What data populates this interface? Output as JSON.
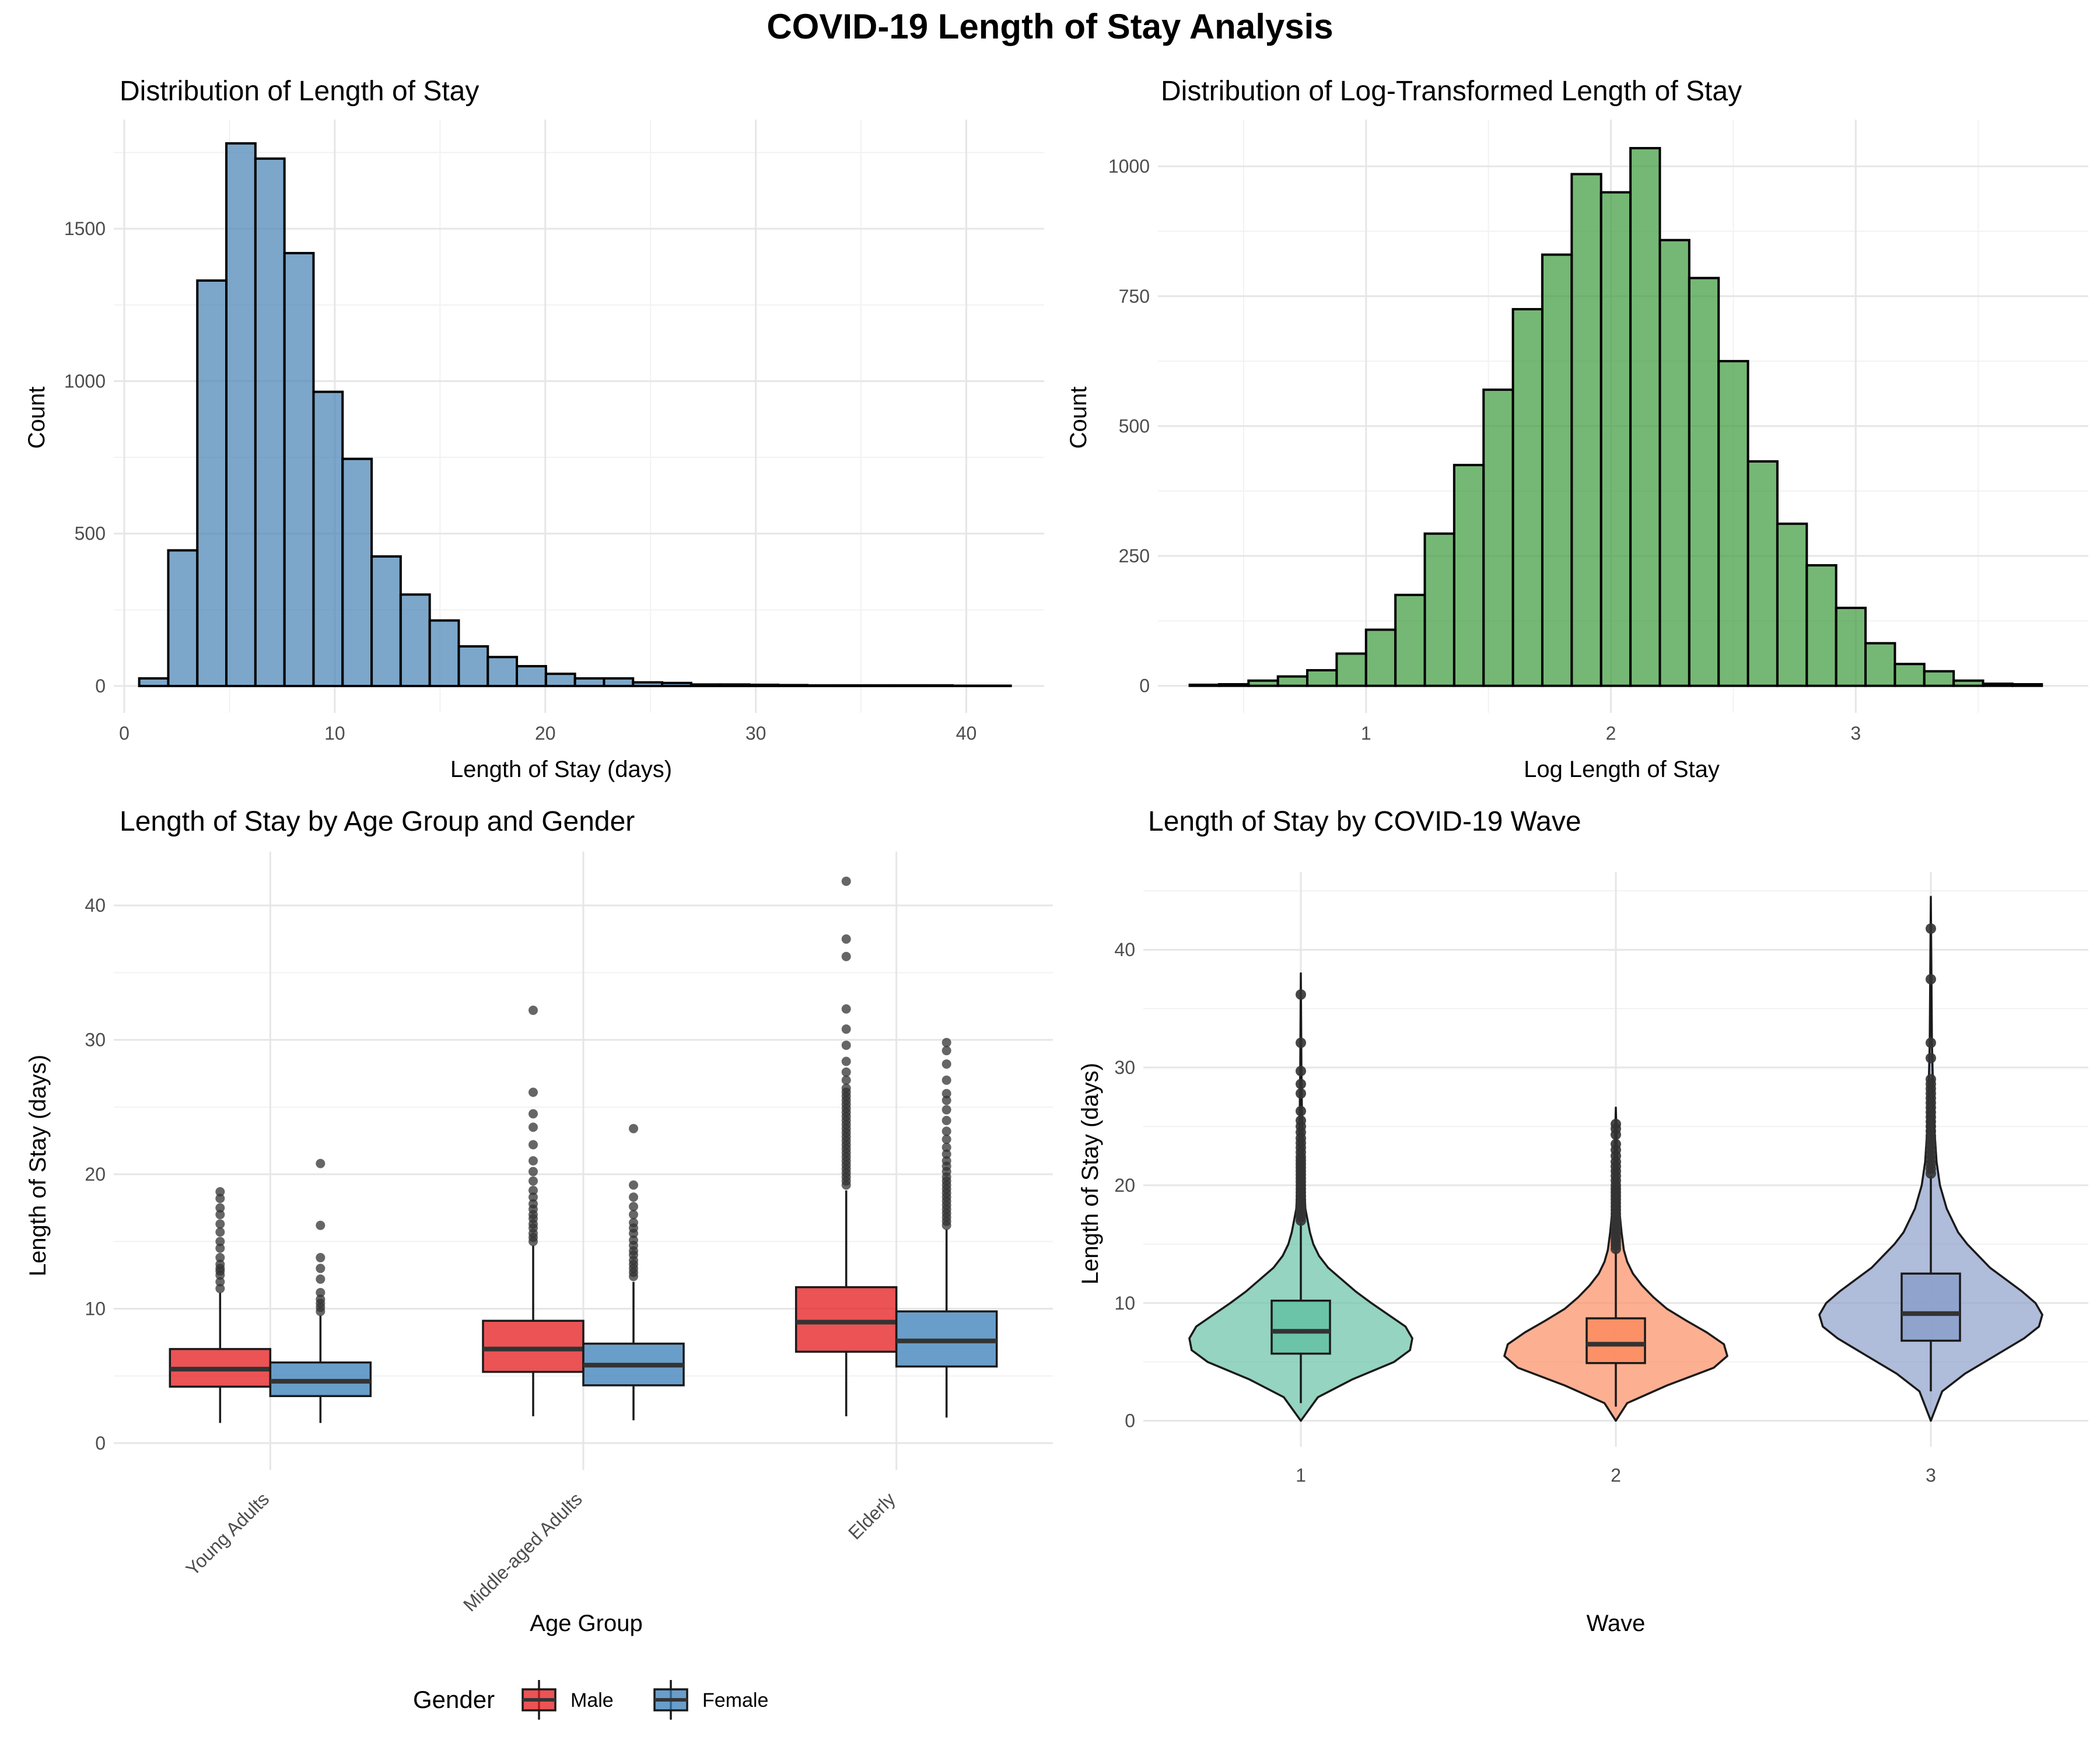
{
  "figure": {
    "title": "COVID-19 Length of Stay Analysis"
  },
  "chart_data": [
    {
      "id": "los-histogram",
      "type": "bar",
      "title": "Distribution of Length of Stay",
      "xlabel": "Length of Stay (days)",
      "ylabel": "Count",
      "xlim": [
        -0.5,
        43.7
      ],
      "ylim": [
        -88,
        1858
      ],
      "xticks": [
        0,
        10,
        20,
        30,
        40
      ],
      "yticks": [
        0,
        500,
        1000,
        1500
      ],
      "grid": true,
      "fill": "#4682B4",
      "bin_width": 1.38,
      "bin_centers": [
        1.4,
        2.78,
        4.16,
        5.54,
        6.92,
        8.3,
        9.68,
        11.06,
        12.44,
        13.82,
        15.2,
        16.58,
        17.96,
        19.34,
        20.72,
        22.1,
        23.48,
        24.86,
        26.24,
        27.62,
        29.0,
        30.38,
        31.76,
        33.14,
        34.52,
        35.9,
        37.28,
        38.66,
        40.04,
        41.42
      ],
      "values": [
        25,
        445,
        1330,
        1780,
        1730,
        1420,
        965,
        745,
        425,
        300,
        215,
        130,
        95,
        65,
        40,
        25,
        25,
        12,
        10,
        5,
        5,
        4,
        3,
        2,
        2,
        2,
        2,
        2,
        1,
        1
      ]
    },
    {
      "id": "log-los-histogram",
      "type": "bar",
      "title": "Distribution of Log-Transformed Length of Stay",
      "xlabel": "Log Length of Stay",
      "ylabel": "Count",
      "xlim": [
        0.15,
        3.95
      ],
      "ylim": [
        -52,
        1090
      ],
      "xticks": [
        1,
        2,
        3
      ],
      "yticks": [
        0,
        250,
        500,
        750,
        1000
      ],
      "grid": true,
      "fill": "#3A9A3A",
      "bin_width": 0.12,
      "bin_centers": [
        0.34,
        0.46,
        0.58,
        0.7,
        0.82,
        0.94,
        1.06,
        1.18,
        1.3,
        1.42,
        1.54,
        1.66,
        1.78,
        1.9,
        2.02,
        2.14,
        2.26,
        2.38,
        2.5,
        2.62,
        2.74,
        2.86,
        2.98,
        3.1,
        3.22,
        3.34,
        3.46,
        3.58,
        3.7
      ],
      "values": [
        2,
        3,
        10,
        18,
        30,
        62,
        108,
        175,
        293,
        425,
        570,
        725,
        830,
        985,
        950,
        1035,
        858,
        785,
        625,
        432,
        312,
        232,
        150,
        82,
        42,
        28,
        10,
        4,
        3
      ]
    },
    {
      "id": "age-gender-boxplot",
      "type": "box",
      "title": "Length of Stay by Age Group and Gender",
      "xlabel": "Age Group",
      "ylabel": "Length of Stay (days)",
      "ylim": [
        -2,
        44
      ],
      "yticks": [
        0,
        10,
        20,
        30,
        40
      ],
      "grid": true,
      "categories": [
        "Young Adults",
        "Middle-aged Adults",
        "Elderly"
      ],
      "legend": {
        "title": "Gender",
        "position": "bottom"
      },
      "series": [
        {
          "name": "Male",
          "color": "#E41A1C",
          "boxes": [
            {
              "min": 1.5,
              "q1": 4.2,
              "median": 5.5,
              "q3": 7.0,
              "max": 11.2,
              "outliers": [
                11.5,
                12.0,
                12.5,
                12.8,
                13.0,
                13.3,
                13.8,
                14.5,
                15.0,
                15.7,
                16.3,
                17.0,
                17.5,
                18.2,
                18.7
              ]
            },
            {
              "min": 2.0,
              "q1": 5.3,
              "median": 7.0,
              "q3": 9.1,
              "max": 14.7,
              "outliers": [
                15.0,
                15.3,
                15.6,
                16.0,
                16.3,
                16.7,
                17.0,
                17.4,
                17.8,
                18.3,
                18.8,
                19.5,
                20.2,
                21.0,
                22.2,
                23.5,
                24.5,
                26.1,
                32.2
              ]
            },
            {
              "min": 2.0,
              "q1": 6.8,
              "median": 9.0,
              "q3": 11.6,
              "max": 18.8,
              "outliers": [
                19.2,
                19.5,
                19.8,
                20.1,
                20.4,
                20.7,
                21.0,
                21.3,
                21.6,
                21.9,
                22.2,
                22.5,
                22.8,
                23.1,
                23.4,
                23.7,
                24.0,
                24.3,
                24.6,
                24.9,
                25.2,
                25.5,
                25.8,
                26.1,
                26.4,
                27.0,
                27.6,
                28.4,
                29.6,
                30.8,
                32.3,
                36.2,
                37.5,
                41.8
              ]
            }
          ]
        },
        {
          "name": "Female",
          "color": "#377EB8",
          "boxes": [
            {
              "min": 1.5,
              "q1": 3.5,
              "median": 4.6,
              "q3": 6.0,
              "max": 9.5,
              "outliers": [
                9.8,
                10.1,
                10.4,
                10.7,
                11.2,
                12.2,
                13.0,
                13.8,
                16.2,
                20.8
              ]
            },
            {
              "min": 1.7,
              "q1": 4.3,
              "median": 5.8,
              "q3": 7.4,
              "max": 12.0,
              "outliers": [
                12.4,
                12.7,
                13.0,
                13.3,
                13.6,
                14.0,
                14.3,
                14.7,
                15.1,
                15.6,
                16.0,
                16.4,
                17.0,
                17.6,
                18.3,
                19.2,
                23.4
              ]
            },
            {
              "min": 1.9,
              "q1": 5.7,
              "median": 7.6,
              "q3": 9.8,
              "max": 15.9,
              "outliers": [
                16.2,
                16.5,
                16.8,
                17.1,
                17.4,
                17.7,
                18.0,
                18.3,
                18.6,
                18.9,
                19.2,
                19.5,
                19.8,
                20.2,
                20.6,
                21.0,
                21.5,
                22.0,
                22.6,
                23.2,
                24.0,
                24.8,
                25.5,
                26.0,
                27.0,
                28.2,
                29.2,
                29.8
              ]
            }
          ]
        }
      ]
    },
    {
      "id": "wave-violin",
      "type": "violin",
      "title": "Length of Stay by COVID-19 Wave",
      "xlabel": "Wave",
      "ylabel": "Length of Stay (days)",
      "ylim": [
        -2.2,
        46.6
      ],
      "yticks": [
        0,
        10,
        20,
        30,
        40
      ],
      "grid": true,
      "categories": [
        "1",
        "2",
        "3"
      ],
      "series": [
        {
          "name": "1",
          "color": "#66C2A5",
          "density": [
            [
              0,
              0.0
            ],
            [
              2,
              0.15
            ],
            [
              3.5,
              0.45
            ],
            [
              5,
              0.82
            ],
            [
              6,
              0.96
            ],
            [
              7,
              0.98
            ],
            [
              8,
              0.92
            ],
            [
              9,
              0.77
            ],
            [
              10,
              0.62
            ],
            [
              11,
              0.48
            ],
            [
              12,
              0.36
            ],
            [
              13,
              0.24
            ],
            [
              14,
              0.16
            ],
            [
              15,
              0.11
            ],
            [
              16,
              0.08
            ],
            [
              17,
              0.06
            ],
            [
              18,
              0.04
            ],
            [
              20,
              0.03
            ],
            [
              22,
              0.02
            ],
            [
              26,
              0.01
            ],
            [
              30,
              0.005
            ],
            [
              38,
              0.0
            ]
          ],
          "box": {
            "min": 1.5,
            "q1": 5.7,
            "median": 7.6,
            "q3": 10.2,
            "max": 16.8
          },
          "outliers": [
            17.0,
            17.3,
            17.6,
            17.9,
            18.2,
            18.5,
            18.8,
            19.1,
            19.4,
            19.7,
            20.0,
            20.3,
            20.6,
            20.9,
            21.2,
            21.5,
            21.8,
            22.1,
            22.4,
            22.8,
            23.2,
            23.6,
            24.0,
            24.5,
            25.0,
            25.5,
            26.3,
            27.8,
            28.6,
            29.7,
            32.1,
            36.2
          ]
        },
        {
          "name": "2",
          "color": "#FC8D62",
          "density": [
            [
              0,
              0.0
            ],
            [
              1.5,
              0.1
            ],
            [
              3,
              0.45
            ],
            [
              4.5,
              0.86
            ],
            [
              5.5,
              0.98
            ],
            [
              6.5,
              0.95
            ],
            [
              7.5,
              0.8
            ],
            [
              8.5,
              0.62
            ],
            [
              9.5,
              0.45
            ],
            [
              10.5,
              0.33
            ],
            [
              11.5,
              0.23
            ],
            [
              12.5,
              0.15
            ],
            [
              13.5,
              0.1
            ],
            [
              14.5,
              0.07
            ],
            [
              16,
              0.05
            ],
            [
              18,
              0.03
            ],
            [
              20,
              0.02
            ],
            [
              23,
              0.01
            ],
            [
              26.6,
              0.0
            ]
          ],
          "box": {
            "min": 1.2,
            "q1": 4.9,
            "median": 6.5,
            "q3": 8.7,
            "max": 14.4
          },
          "outliers": [
            14.6,
            14.9,
            15.2,
            15.5,
            15.8,
            16.1,
            16.4,
            16.7,
            17.0,
            17.3,
            17.6,
            17.9,
            18.2,
            18.5,
            18.8,
            19.1,
            19.4,
            19.7,
            20.0,
            20.4,
            20.8,
            21.2,
            21.6,
            22.0,
            22.5,
            23.0,
            23.5,
            24.3,
            24.8,
            25.2
          ]
        },
        {
          "name": "3",
          "color": "#8DA0CB",
          "density": [
            [
              0,
              0.0
            ],
            [
              2.5,
              0.1
            ],
            [
              4,
              0.3
            ],
            [
              5.5,
              0.56
            ],
            [
              7,
              0.82
            ],
            [
              8,
              0.95
            ],
            [
              9,
              0.98
            ],
            [
              10,
              0.92
            ],
            [
              11,
              0.8
            ],
            [
              12,
              0.66
            ],
            [
              13,
              0.52
            ],
            [
              14,
              0.42
            ],
            [
              15,
              0.32
            ],
            [
              16,
              0.24
            ],
            [
              18,
              0.14
            ],
            [
              20,
              0.08
            ],
            [
              22,
              0.05
            ],
            [
              25,
              0.03
            ],
            [
              28,
              0.02
            ],
            [
              32,
              0.01
            ],
            [
              38,
              0.005
            ],
            [
              44.5,
              0.0
            ]
          ],
          "box": {
            "min": 2.5,
            "q1": 6.8,
            "median": 9.1,
            "q3": 12.5,
            "max": 20.8
          },
          "outliers": [
            21.0,
            21.4,
            21.8,
            22.2,
            22.6,
            23.0,
            23.4,
            23.8,
            24.2,
            24.6,
            25.0,
            25.4,
            25.8,
            26.2,
            26.6,
            27.0,
            27.4,
            27.8,
            28.2,
            28.6,
            29.0,
            30.8,
            32.1,
            37.5,
            41.8
          ]
        }
      ]
    }
  ]
}
